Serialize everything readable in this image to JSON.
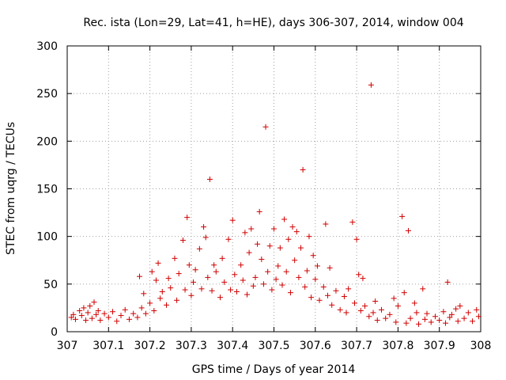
{
  "chart_data": {
    "type": "scatter",
    "title": "Rec. ista (Lon=29, Lat=41, h=HE), days 306-307, 2014, window 004",
    "xlabel": "GPS time / Days of year 2014",
    "ylabel": "STEC from uqrg / TECUs",
    "xlim": [
      307,
      308
    ],
    "ylim": [
      0,
      300
    ],
    "x_ticks": [
      307,
      307.1,
      307.2,
      307.3,
      307.4,
      307.5,
      307.6,
      307.7,
      307.8,
      307.9,
      308
    ],
    "x_tick_labels": [
      "307",
      "307.1",
      "307.2",
      "307.3",
      "307.4",
      "307.5",
      "307.6",
      "307.7",
      "307.8",
      "307.9",
      "308"
    ],
    "y_ticks": [
      0,
      50,
      100,
      150,
      200,
      250,
      300
    ],
    "y_tick_labels": [
      "0",
      "50",
      "100",
      "150",
      "200",
      "250",
      "300"
    ],
    "grid": true,
    "marker": "+",
    "color": "#d00000",
    "series": [
      {
        "name": "STEC",
        "points": [
          [
            307.01,
            15
          ],
          [
            307.015,
            18
          ],
          [
            307.02,
            13
          ],
          [
            307.03,
            22
          ],
          [
            307.035,
            17
          ],
          [
            307.04,
            25
          ],
          [
            307.045,
            12
          ],
          [
            307.05,
            20
          ],
          [
            307.055,
            27
          ],
          [
            307.06,
            14
          ],
          [
            307.065,
            31
          ],
          [
            307.07,
            18
          ],
          [
            307.075,
            22
          ],
          [
            307.08,
            12
          ],
          [
            307.09,
            19
          ],
          [
            307.1,
            15
          ],
          [
            307.11,
            21
          ],
          [
            307.12,
            11
          ],
          [
            307.13,
            17
          ],
          [
            307.14,
            23
          ],
          [
            307.15,
            13
          ],
          [
            307.16,
            19
          ],
          [
            307.17,
            15
          ],
          [
            307.175,
            58
          ],
          [
            307.18,
            25
          ],
          [
            307.185,
            40
          ],
          [
            307.19,
            19
          ],
          [
            307.2,
            30
          ],
          [
            307.205,
            63
          ],
          [
            307.21,
            22
          ],
          [
            307.215,
            54
          ],
          [
            307.22,
            72
          ],
          [
            307.225,
            35
          ],
          [
            307.23,
            42
          ],
          [
            307.24,
            28
          ],
          [
            307.245,
            56
          ],
          [
            307.25,
            46
          ],
          [
            307.26,
            77
          ],
          [
            307.265,
            33
          ],
          [
            307.27,
            61
          ],
          [
            307.28,
            96
          ],
          [
            307.285,
            44
          ],
          [
            307.29,
            120
          ],
          [
            307.295,
            70
          ],
          [
            307.3,
            38
          ],
          [
            307.305,
            52
          ],
          [
            307.31,
            65
          ],
          [
            307.32,
            87
          ],
          [
            307.325,
            45
          ],
          [
            307.33,
            110
          ],
          [
            307.335,
            99
          ],
          [
            307.34,
            57
          ],
          [
            307.345,
            160
          ],
          [
            307.35,
            43
          ],
          [
            307.355,
            70
          ],
          [
            307.36,
            63
          ],
          [
            307.37,
            36
          ],
          [
            307.375,
            77
          ],
          [
            307.38,
            52
          ],
          [
            307.39,
            97
          ],
          [
            307.395,
            44
          ],
          [
            307.4,
            117
          ],
          [
            307.405,
            60
          ],
          [
            307.41,
            42
          ],
          [
            307.42,
            70
          ],
          [
            307.425,
            54
          ],
          [
            307.43,
            104
          ],
          [
            307.435,
            39
          ],
          [
            307.44,
            83
          ],
          [
            307.445,
            108
          ],
          [
            307.45,
            48
          ],
          [
            307.455,
            57
          ],
          [
            307.46,
            92
          ],
          [
            307.465,
            126
          ],
          [
            307.47,
            76
          ],
          [
            307.475,
            50
          ],
          [
            307.48,
            215
          ],
          [
            307.485,
            63
          ],
          [
            307.49,
            90
          ],
          [
            307.495,
            44
          ],
          [
            307.5,
            108
          ],
          [
            307.505,
            55
          ],
          [
            307.51,
            69
          ],
          [
            307.515,
            88
          ],
          [
            307.52,
            49
          ],
          [
            307.525,
            118
          ],
          [
            307.53,
            63
          ],
          [
            307.535,
            97
          ],
          [
            307.54,
            41
          ],
          [
            307.545,
            110
          ],
          [
            307.55,
            75
          ],
          [
            307.555,
            105
          ],
          [
            307.56,
            57
          ],
          [
            307.565,
            88
          ],
          [
            307.57,
            170
          ],
          [
            307.575,
            47
          ],
          [
            307.58,
            64
          ],
          [
            307.585,
            100
          ],
          [
            307.59,
            36
          ],
          [
            307.595,
            80
          ],
          [
            307.6,
            55
          ],
          [
            307.605,
            69
          ],
          [
            307.61,
            33
          ],
          [
            307.62,
            47
          ],
          [
            307.625,
            113
          ],
          [
            307.63,
            38
          ],
          [
            307.635,
            67
          ],
          [
            307.64,
            28
          ],
          [
            307.65,
            43
          ],
          [
            307.66,
            23
          ],
          [
            307.67,
            37
          ],
          [
            307.675,
            20
          ],
          [
            307.68,
            45
          ],
          [
            307.69,
            115
          ],
          [
            307.695,
            30
          ],
          [
            307.7,
            97
          ],
          [
            307.705,
            60
          ],
          [
            307.71,
            22
          ],
          [
            307.715,
            56
          ],
          [
            307.72,
            27
          ],
          [
            307.73,
            16
          ],
          [
            307.735,
            259
          ],
          [
            307.74,
            20
          ],
          [
            307.745,
            32
          ],
          [
            307.75,
            12
          ],
          [
            307.76,
            23
          ],
          [
            307.77,
            14
          ],
          [
            307.78,
            18
          ],
          [
            307.79,
            35
          ],
          [
            307.795,
            10
          ],
          [
            307.8,
            27
          ],
          [
            307.81,
            121
          ],
          [
            307.815,
            41
          ],
          [
            307.82,
            9
          ],
          [
            307.825,
            106
          ],
          [
            307.83,
            14
          ],
          [
            307.84,
            30
          ],
          [
            307.845,
            20
          ],
          [
            307.85,
            8
          ],
          [
            307.86,
            45
          ],
          [
            307.865,
            13
          ],
          [
            307.87,
            19
          ],
          [
            307.88,
            10
          ],
          [
            307.89,
            16
          ],
          [
            307.9,
            12
          ],
          [
            307.91,
            21
          ],
          [
            307.915,
            9
          ],
          [
            307.92,
            52
          ],
          [
            307.925,
            15
          ],
          [
            307.93,
            18
          ],
          [
            307.94,
            24
          ],
          [
            307.945,
            11
          ],
          [
            307.95,
            27
          ],
          [
            307.96,
            14
          ],
          [
            307.97,
            20
          ],
          [
            307.98,
            11
          ],
          [
            307.99,
            23
          ],
          [
            307.995,
            16
          ]
        ]
      }
    ]
  }
}
